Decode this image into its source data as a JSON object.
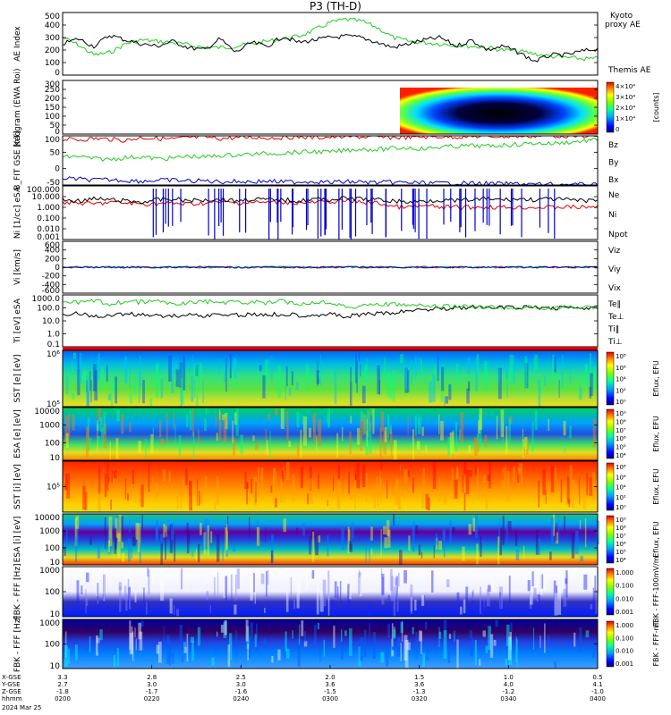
{
  "title": "P3 (TH-D)",
  "date_label": "2024 Mar 25",
  "colors": {
    "red": "#e00000",
    "green": "#22cc22",
    "blue": "#0000cc",
    "black": "#000000",
    "kyoto": "#22dd22"
  },
  "chart_data": [
    {
      "type": "line",
      "panel": "ae",
      "ylabel": "AE Index",
      "yticks": [
        "500",
        "400",
        "300",
        "200",
        "100",
        "0"
      ],
      "ylim": [
        0,
        500
      ],
      "series": [
        {
          "name": "Kyoto proxy AE",
          "line1": "Kyoto",
          "line2": "proxy AE",
          "color": "green",
          "values": [
            300,
            240,
            160,
            180,
            250,
            280,
            270,
            260,
            240,
            220,
            220,
            230,
            250,
            270,
            290,
            310,
            360,
            420,
            445,
            430,
            380,
            300,
            270,
            260,
            250,
            240,
            230,
            220,
            200,
            190,
            170,
            150,
            140,
            130,
            130
          ]
        },
        {
          "name": "Themis AE",
          "color": "black",
          "values": [
            250,
            290,
            230,
            320,
            280,
            250,
            230,
            270,
            220,
            200,
            290,
            180,
            260,
            230,
            310,
            260,
            280,
            300,
            310,
            300,
            260,
            220,
            250,
            280,
            300,
            230,
            280,
            200,
            230,
            180,
            110,
            160,
            160,
            190,
            210
          ]
        }
      ]
    },
    {
      "type": "heatmap",
      "panel": "keogram",
      "ylabel": "Keogram",
      "ylabel2": "(EWA Roi)",
      "yticks": [
        "300",
        "250",
        "200",
        "150",
        "100",
        "50",
        "0"
      ],
      "colorbar": {
        "label": "[counts]",
        "ticks": [
          "4×10⁴",
          "3×10⁴",
          "2×10⁴",
          "1×10⁴",
          "0"
        ]
      }
    },
    {
      "type": "line",
      "panel": "bfgm",
      "ylabel": "B_FIT",
      "ylabel2": "GSE",
      "unit": "[nT]",
      "yticks": [
        "100",
        "50",
        "0",
        "-50"
      ],
      "ylim": [
        -50,
        100
      ],
      "series": [
        {
          "name": "Bz",
          "color": "red",
          "values": [
            90,
            88,
            92,
            90,
            86,
            95,
            92,
            90,
            95,
            96,
            92,
            94,
            96,
            94,
            95,
            97,
            95,
            96,
            98,
            97,
            96,
            95,
            96,
            97,
            98,
            97,
            98,
            99,
            98,
            99,
            100,
            100,
            100,
            100,
            100
          ]
        },
        {
          "name": "By",
          "color": "green",
          "values": [
            35,
            38,
            30,
            28,
            34,
            36,
            30,
            32,
            38,
            35,
            40,
            42,
            44,
            46,
            48,
            50,
            52,
            50,
            56,
            60,
            58,
            62,
            64,
            60,
            66,
            68,
            70,
            68,
            72,
            74,
            78,
            76,
            80,
            84,
            88
          ]
        },
        {
          "name": "Bx",
          "color": "blue",
          "values": [
            -30,
            -32,
            -35,
            -34,
            -36,
            -38,
            -36,
            -35,
            -38,
            -37,
            -40,
            -39,
            -40,
            -38,
            -41,
            -40,
            -39,
            -42,
            -40,
            -41,
            -43,
            -42,
            -43,
            -44,
            -45,
            -44,
            -45,
            -46,
            -47,
            -46,
            -48,
            -48,
            -49,
            -49,
            -50
          ]
        }
      ]
    },
    {
      "type": "line",
      "panel": "density",
      "ylabel": "Ni",
      "ylabel2": "[1/cc]",
      "ylabel3": "eSA",
      "yticks": [
        "100.000",
        "10.000",
        "1.000",
        "0.100",
        "0.010",
        "0.001"
      ],
      "ylim_log10": [
        -3,
        2
      ],
      "series": [
        {
          "name": "Ne",
          "color": "red",
          "values": [
            3,
            2.5,
            2,
            3,
            2.5,
            2,
            2.2,
            2.4,
            2,
            2.5,
            3,
            2.6,
            3,
            2.8,
            3.2,
            2.5,
            2.8,
            3.5,
            4,
            3,
            2.5,
            1.2,
            1,
            1.4,
            1,
            1,
            1,
            1.1,
            1,
            1,
            1,
            1,
            1.1,
            1,
            1.2
          ]
        },
        {
          "name": "Ni",
          "color": "black",
          "values": [
            5,
            4,
            6,
            5,
            4,
            3,
            5,
            6,
            4,
            5,
            6,
            4,
            6,
            5,
            5,
            4,
            6,
            5,
            7,
            6,
            5,
            4,
            3,
            4,
            5,
            4,
            5,
            6,
            5,
            6,
            5,
            6,
            5,
            4,
            5
          ]
        },
        {
          "name": "Npot",
          "color": "blue",
          "values": []
        }
      ]
    },
    {
      "type": "line",
      "panel": "velocity",
      "ylabel": "Vi",
      "ylabel2": "[km/s]",
      "yticks": [
        "600",
        "400",
        "200",
        "0",
        "-200",
        "-400",
        "-600"
      ],
      "ylim": [
        -700,
        700
      ],
      "series": [
        {
          "name": "Viz",
          "color": "red",
          "values": [
            0
          ]
        },
        {
          "name": "Viy",
          "color": "green",
          "values": [
            0
          ]
        },
        {
          "name": "Vix",
          "color": "blue",
          "values": [
            0
          ]
        }
      ]
    },
    {
      "type": "line",
      "panel": "temperature",
      "ylabel": "Ti",
      "ylabel2": "[eV]",
      "ylabel3": "eSA",
      "yticks": [
        "1000.0",
        "100.0",
        "10.0",
        "1.0",
        "0.1"
      ],
      "ylim_log10": [
        -1,
        3
      ],
      "series": [
        {
          "name": "Te||",
          "label": "Te‖",
          "color": "black",
          "values": [
            30,
            40,
            20,
            25,
            35,
            30,
            28,
            22,
            30,
            26,
            30,
            28,
            32,
            30,
            34,
            28,
            30,
            32,
            20,
            30,
            35,
            40,
            60,
            80,
            90,
            100,
            110,
            105,
            110,
            100,
            110,
            100,
            105,
            100,
            100
          ]
        },
        {
          "name": "Te⊥",
          "label": "Te⊥",
          "color": "red",
          "values": []
        },
        {
          "name": "Ti||",
          "label": "Ti‖",
          "color": "green",
          "values": [
            300,
            250,
            350,
            200,
            300,
            280,
            320,
            200,
            260,
            300,
            280,
            250,
            300,
            220,
            320,
            200,
            260,
            300,
            100,
            150,
            200,
            180,
            160,
            140,
            120,
            130,
            120,
            110,
            120,
            100,
            110,
            100,
            120,
            110,
            100
          ]
        },
        {
          "name": "Ti⊥",
          "label": "Ti⊥",
          "color": "blue",
          "values": []
        }
      ]
    },
    {
      "type": "heatmap",
      "panel": "sst_e",
      "ylabel": "SST",
      "ylabel2": "[e]",
      "unit": "[eV]",
      "yticks": [
        "10⁶",
        "10⁵"
      ],
      "colorbar": {
        "label": "Eflux, EFU",
        "ticks": [
          "10⁸",
          "10⁶",
          "10⁴",
          "10²",
          "10⁰"
        ]
      }
    },
    {
      "type": "heatmap",
      "panel": "esa_e",
      "ylabel": "ESA",
      "ylabel2": "[e]",
      "unit": "[eV]",
      "yticks": [
        "10000",
        "1000",
        "100",
        "10"
      ],
      "colorbar": {
        "label": "Eflux, EFU",
        "ticks": [
          "10⁹",
          "10⁸",
          "10⁷",
          "10⁶",
          "10⁵",
          "10⁴"
        ]
      }
    },
    {
      "type": "heatmap",
      "panel": "sst_i",
      "ylabel": "SST",
      "ylabel2": "[i]",
      "unit": "[eV]",
      "yticks": [
        "10⁵"
      ],
      "colorbar": {
        "label": "Eflux, EFU",
        "ticks": [
          "10⁸",
          "10⁶",
          "10⁴",
          "10²",
          "10⁰"
        ]
      }
    },
    {
      "type": "heatmap",
      "panel": "esa_i",
      "ylabel": "ESA",
      "ylabel2": "[i]",
      "unit": "[eV]",
      "yticks": [
        "10000",
        "1000",
        "100",
        "10"
      ],
      "colorbar": {
        "label": "Eflux, EFU",
        "ticks": [
          "10⁹",
          "10⁸",
          "10⁷",
          "10⁶",
          "10⁵",
          "10⁴"
        ]
      }
    },
    {
      "type": "heatmap",
      "panel": "fbk_e",
      "ylabel": "FBK - FFF",
      "unit": "[Hz]",
      "yticks": [
        "1000",
        "100",
        "10"
      ],
      "colorbar": {
        "label": "FBK - FFF-100mV/m",
        "ticks": [
          "1.000",
          "0.100",
          "0.010",
          "0.001"
        ]
      }
    },
    {
      "type": "heatmap",
      "panel": "fbk_b",
      "ylabel": "FBK - FFF",
      "unit": "[Hz]",
      "yticks": [
        "1000",
        "100",
        "10"
      ],
      "colorbar": {
        "label": "FBK - FFF-nT",
        "ticks": [
          "1.000",
          "0.100",
          "0.010",
          "0.001"
        ]
      }
    }
  ],
  "xaxis": {
    "row_labels": [
      "X-GSE",
      "Y-GSE",
      "Z-GSE",
      "hhmm"
    ],
    "columns": [
      [
        "3.3",
        "2.7",
        "-1.8",
        "0200"
      ],
      [
        "2.8",
        "3.0",
        "-1.7",
        "0220"
      ],
      [
        "2.5",
        "3.0",
        "-1.6",
        "0240"
      ],
      [
        "2.0",
        "3.6",
        "-1.5",
        "0300"
      ],
      [
        "1.5",
        "3.6",
        "-1.3",
        "0320"
      ],
      [
        "1.0",
        "4.0",
        "-1.2",
        "0340"
      ],
      [
        "0.5",
        "4.1",
        "-1.0",
        "0400"
      ]
    ]
  }
}
